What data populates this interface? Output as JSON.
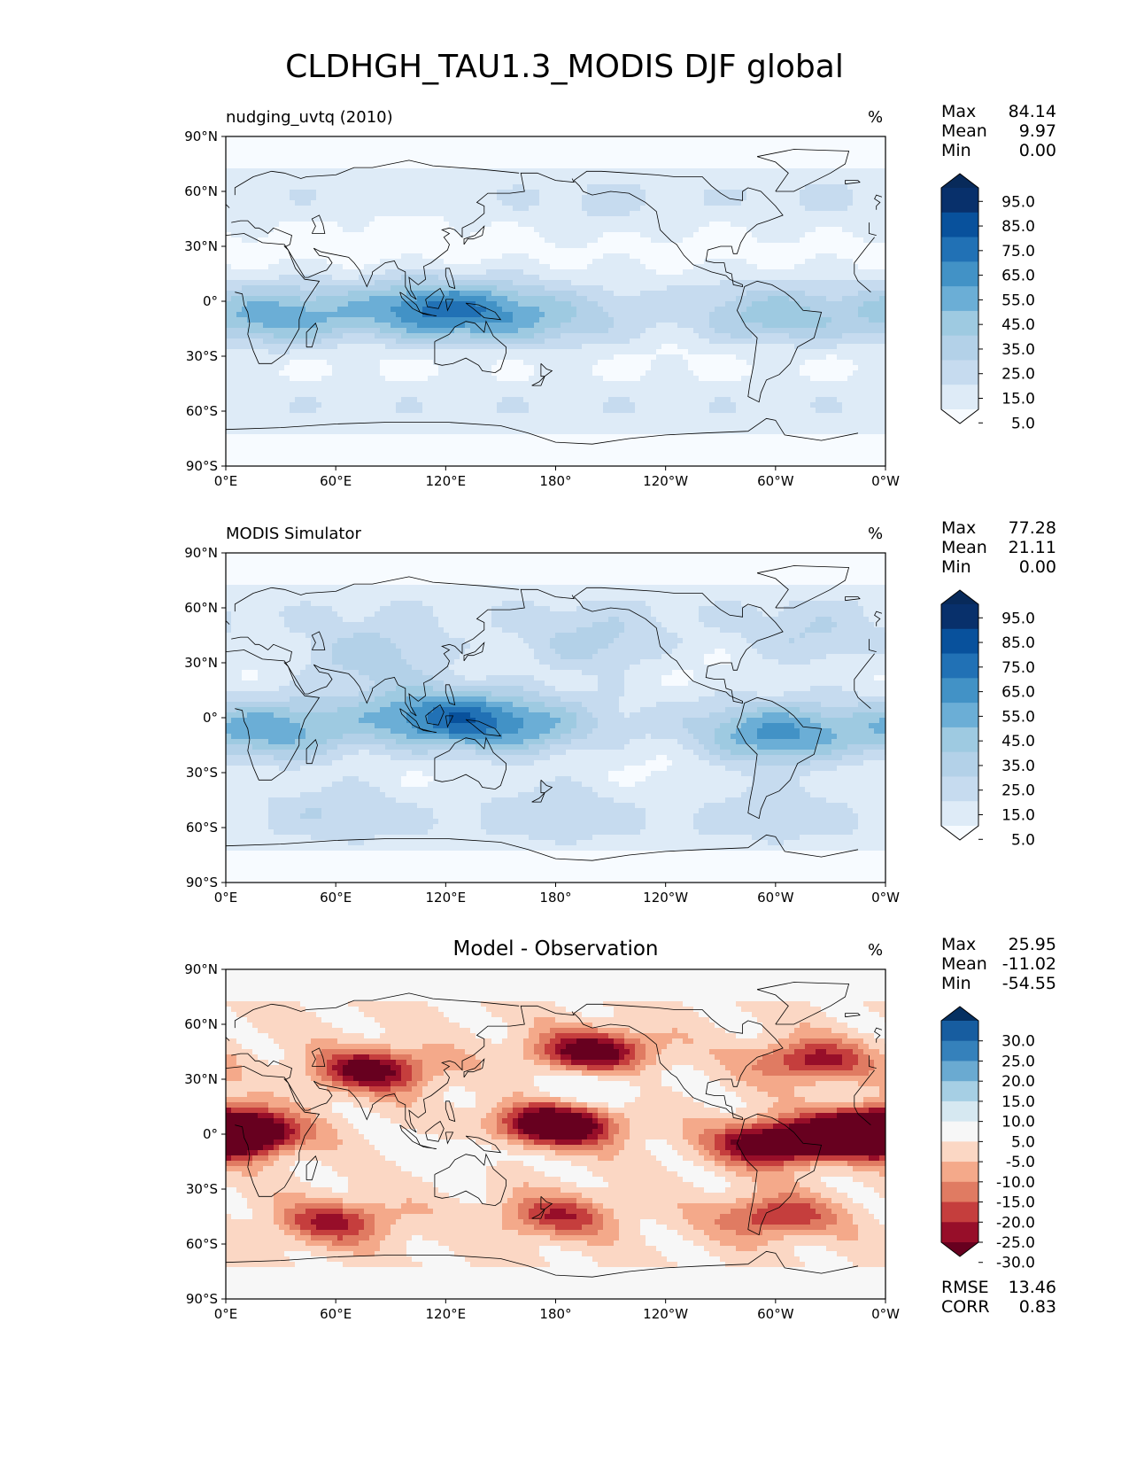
{
  "title": "CLDHGH_TAU1.3_MODIS DJF global",
  "colors": {
    "blues": [
      "#f7fbff",
      "#deebf7",
      "#c6dbef",
      "#b3d1e8",
      "#9ecae1",
      "#6baed6",
      "#4292c6",
      "#2171b5",
      "#08519c",
      "#08306b",
      "#082a5a"
    ],
    "diff": [
      "#67001f",
      "#970e29",
      "#c53e3d",
      "#e07b62",
      "#f4a98a",
      "#fbd7c4",
      "#f7f7f7",
      "#d6e8f1",
      "#a6cfe4",
      "#6aaad1",
      "#3581bb",
      "#175da0",
      "#053061"
    ],
    "land_outline": "#000000",
    "background_blue": "#f7fbff",
    "background_diff": "#f4f4f4"
  },
  "axes": {
    "lat_ticks": [
      "90°N",
      "60°N",
      "30°N",
      "0°",
      "30°S",
      "60°S",
      "90°S"
    ],
    "lon_ticks": [
      "0°E",
      "60°E",
      "120°E",
      "180°",
      "120°W",
      "60°W",
      "0°W"
    ]
  },
  "chart_data": [
    {
      "type": "heatmap",
      "title": "nudging_uvtq (2010)",
      "units": "%",
      "stats": [
        {
          "label": "Max",
          "value": "84.14"
        },
        {
          "label": "Mean",
          "value": "9.97"
        },
        {
          "label": "Min",
          "value": "0.00"
        }
      ],
      "colorbar_levels": [
        "95.0",
        "85.0",
        "75.0",
        "65.0",
        "55.0",
        "45.0",
        "35.0",
        "25.0",
        "15.0",
        "5.0"
      ],
      "colormap": "blues",
      "features": [
        {
          "lon": 110,
          "lat": -5,
          "value": 60
        },
        {
          "lon": 28,
          "lat": -10,
          "value": 55
        },
        {
          "lon": 300,
          "lat": -10,
          "value": 45
        },
        {
          "lon": 150,
          "lat": -8,
          "value": 40
        },
        {
          "lon": 190,
          "lat": -15,
          "value": 30
        },
        {
          "lon": 200,
          "lat": 45,
          "value": 22
        },
        {
          "lon": 320,
          "lat": 45,
          "value": 20
        },
        {
          "lon": 50,
          "lat": 48,
          "value": 15
        },
        {
          "lon": 100,
          "lat": 45,
          "value": 12
        }
      ]
    },
    {
      "type": "heatmap",
      "title": "MODIS Simulator",
      "units": "%",
      "stats": [
        {
          "label": "Max",
          "value": "77.28"
        },
        {
          "label": "Mean",
          "value": "21.11"
        },
        {
          "label": "Min",
          "value": "0.00"
        }
      ],
      "colorbar_levels": [
        "95.0",
        "85.0",
        "75.0",
        "65.0",
        "55.0",
        "45.0",
        "35.0",
        "25.0",
        "15.0",
        "5.0"
      ],
      "colormap": "blues",
      "features": [
        {
          "lon": 115,
          "lat": 0,
          "value": 62
        },
        {
          "lon": 300,
          "lat": -10,
          "value": 62
        },
        {
          "lon": 25,
          "lat": -8,
          "value": 55
        },
        {
          "lon": 160,
          "lat": -5,
          "value": 48
        },
        {
          "lon": 80,
          "lat": 33,
          "value": 45
        },
        {
          "lon": 200,
          "lat": 38,
          "value": 40
        },
        {
          "lon": 320,
          "lat": 40,
          "value": 35
        },
        {
          "lon": 180,
          "lat": -45,
          "value": 30
        },
        {
          "lon": 60,
          "lat": -45,
          "value": 30
        },
        {
          "lon": 300,
          "lat": -45,
          "value": 28
        }
      ]
    },
    {
      "type": "heatmap",
      "title": "Model - Observation",
      "units": "%",
      "stats": [
        {
          "label": "Max",
          "value": "25.95"
        },
        {
          "label": "Mean",
          "value": "-11.02"
        },
        {
          "label": "Min",
          "value": "-54.55"
        }
      ],
      "colorbar_levels": [
        "30.0",
        "25.0",
        "20.0",
        "15.0",
        "10.0",
        "5.0",
        "-5.0",
        "-10.0",
        "-15.0",
        "-20.0",
        "-25.0",
        "-30.0"
      ],
      "colormap": "diff",
      "extra_stats": [
        {
          "label": "RMSE",
          "value": "13.46"
        },
        {
          "label": "CORR",
          "value": "0.83"
        }
      ],
      "features": [
        {
          "lon": 180,
          "lat": 5,
          "value": -40
        },
        {
          "lon": 5,
          "lat": 0,
          "value": -40
        },
        {
          "lon": 350,
          "lat": 2,
          "value": -35
        },
        {
          "lon": 300,
          "lat": -5,
          "value": -38
        },
        {
          "lon": 200,
          "lat": 45,
          "value": -30
        },
        {
          "lon": 80,
          "lat": 35,
          "value": -28
        },
        {
          "lon": 60,
          "lat": -48,
          "value": -20
        },
        {
          "lon": 180,
          "lat": -45,
          "value": -18
        },
        {
          "lon": 300,
          "lat": -45,
          "value": -20
        },
        {
          "lon": 320,
          "lat": 40,
          "value": -22
        },
        {
          "lon": 130,
          "lat": -10,
          "value": 8
        },
        {
          "lon": 200,
          "lat": 25,
          "value": 10
        }
      ]
    }
  ]
}
